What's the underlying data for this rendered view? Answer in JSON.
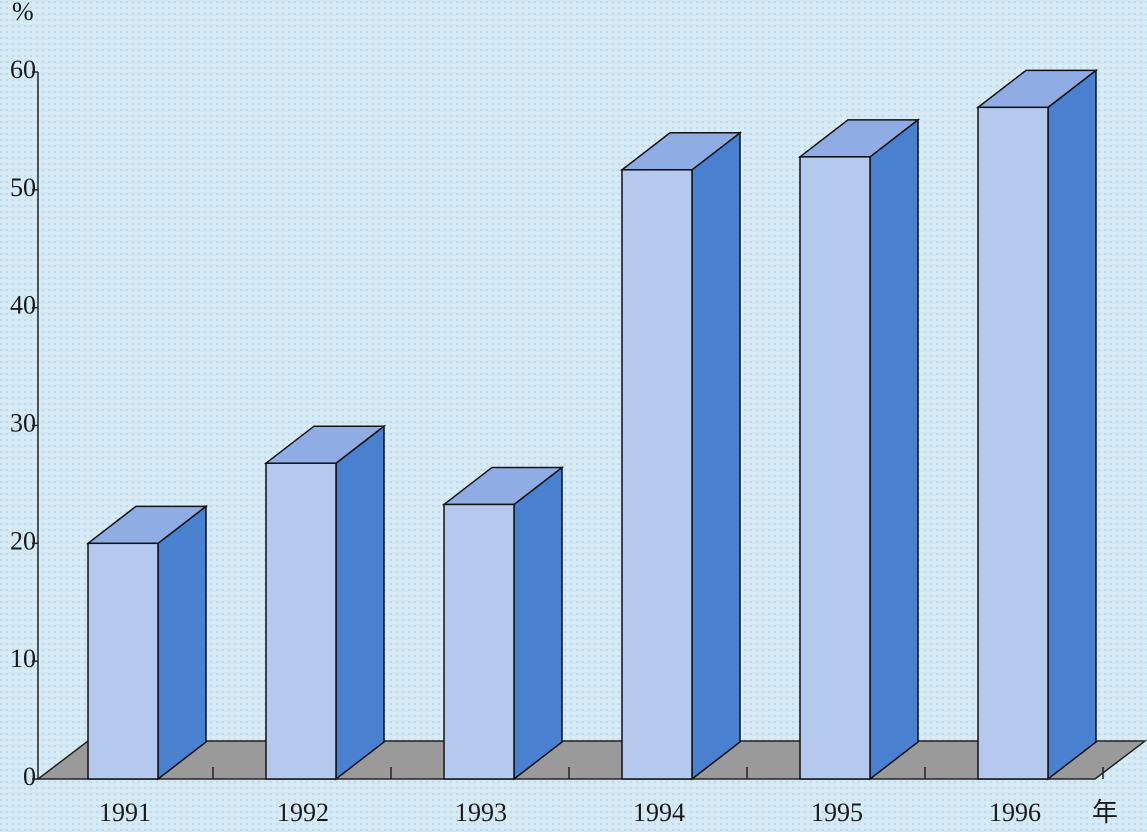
{
  "chart_data": {
    "type": "bar3d",
    "y_label": "%",
    "x_label": "年",
    "categories": [
      "1991",
      "1992",
      "1993",
      "1994",
      "1995",
      "1996"
    ],
    "values": [
      20,
      26.8,
      23.3,
      51.7,
      52.8,
      57
    ],
    "color": "#b5c9ef",
    "side_color": "#4a80d0",
    "top_color": "#90ace4",
    "ylim": [
      0,
      60
    ],
    "yticks": [
      0,
      10,
      20,
      30,
      40,
      50,
      60
    ]
  }
}
